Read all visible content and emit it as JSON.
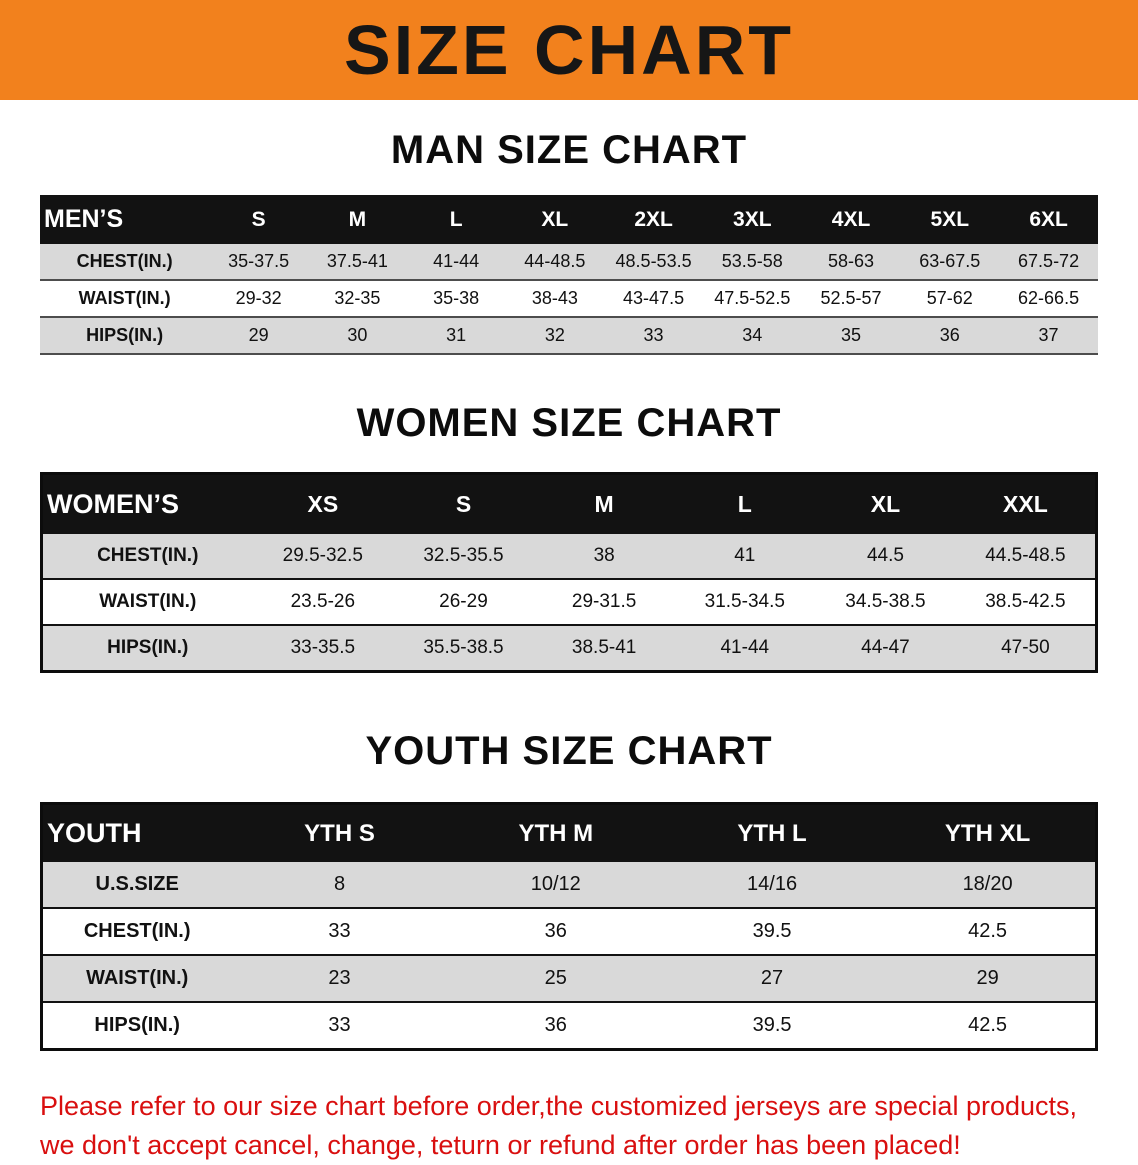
{
  "banner": {
    "title": "SIZE CHART"
  },
  "colors": {
    "banner_orange": "#f2811d",
    "header_black": "#121212",
    "row_stripe_gray": "#d9d9d9",
    "footer_red": "#d90f0f"
  },
  "sections": [
    {
      "heading": "MAN SIZE CHART",
      "table": {
        "header": [
          "MEN’S",
          "S",
          "M",
          "L",
          "XL",
          "2XL",
          "3XL",
          "4XL",
          "5XL",
          "6XL"
        ],
        "rows": [
          [
            "CHEST(IN.)",
            "35-37.5",
            "37.5-41",
            "41-44",
            "44-48.5",
            "48.5-53.5",
            "53.5-58",
            "58-63",
            "63-67.5",
            "67.5-72"
          ],
          [
            "WAIST(IN.)",
            "29-32",
            "32-35",
            "35-38",
            "38-43",
            "43-47.5",
            "47.5-52.5",
            "52.5-57",
            "57-62",
            "62-66.5"
          ],
          [
            "HIPS(IN.)",
            "29",
            "30",
            "31",
            "32",
            "33",
            "34",
            "35",
            "36",
            "37"
          ]
        ]
      }
    },
    {
      "heading": "WOMEN SIZE CHART",
      "table": {
        "header": [
          "WOMEN’S",
          "XS",
          "S",
          "M",
          "L",
          "XL",
          "XXL"
        ],
        "rows": [
          [
            "CHEST(IN.)",
            "29.5-32.5",
            "32.5-35.5",
            "38",
            "41",
            "44.5",
            "44.5-48.5"
          ],
          [
            "WAIST(IN.)",
            "23.5-26",
            "26-29",
            "29-31.5",
            "31.5-34.5",
            "34.5-38.5",
            "38.5-42.5"
          ],
          [
            "HIPS(IN.)",
            "33-35.5",
            "35.5-38.5",
            "38.5-41",
            "41-44",
            "44-47",
            "47-50"
          ]
        ]
      }
    },
    {
      "heading": "YOUTH SIZE CHART",
      "table": {
        "header": [
          "YOUTH",
          "YTH S",
          "YTH M",
          "YTH L",
          "YTH XL"
        ],
        "rows": [
          [
            "U.S.SIZE",
            "8",
            "10/12",
            "14/16",
            "18/20"
          ],
          [
            "CHEST(IN.)",
            "33",
            "36",
            "39.5",
            "42.5"
          ],
          [
            "WAIST(IN.)",
            "23",
            "25",
            "27",
            "29"
          ],
          [
            "HIPS(IN.)",
            "33",
            "36",
            "39.5",
            "42.5"
          ]
        ]
      }
    }
  ],
  "footer": {
    "line1": "Please refer to our size chart before order,the customized jerseys are special products,",
    "line2": "we don't accept cancel, change, teturn or refund after order has been placed!"
  }
}
